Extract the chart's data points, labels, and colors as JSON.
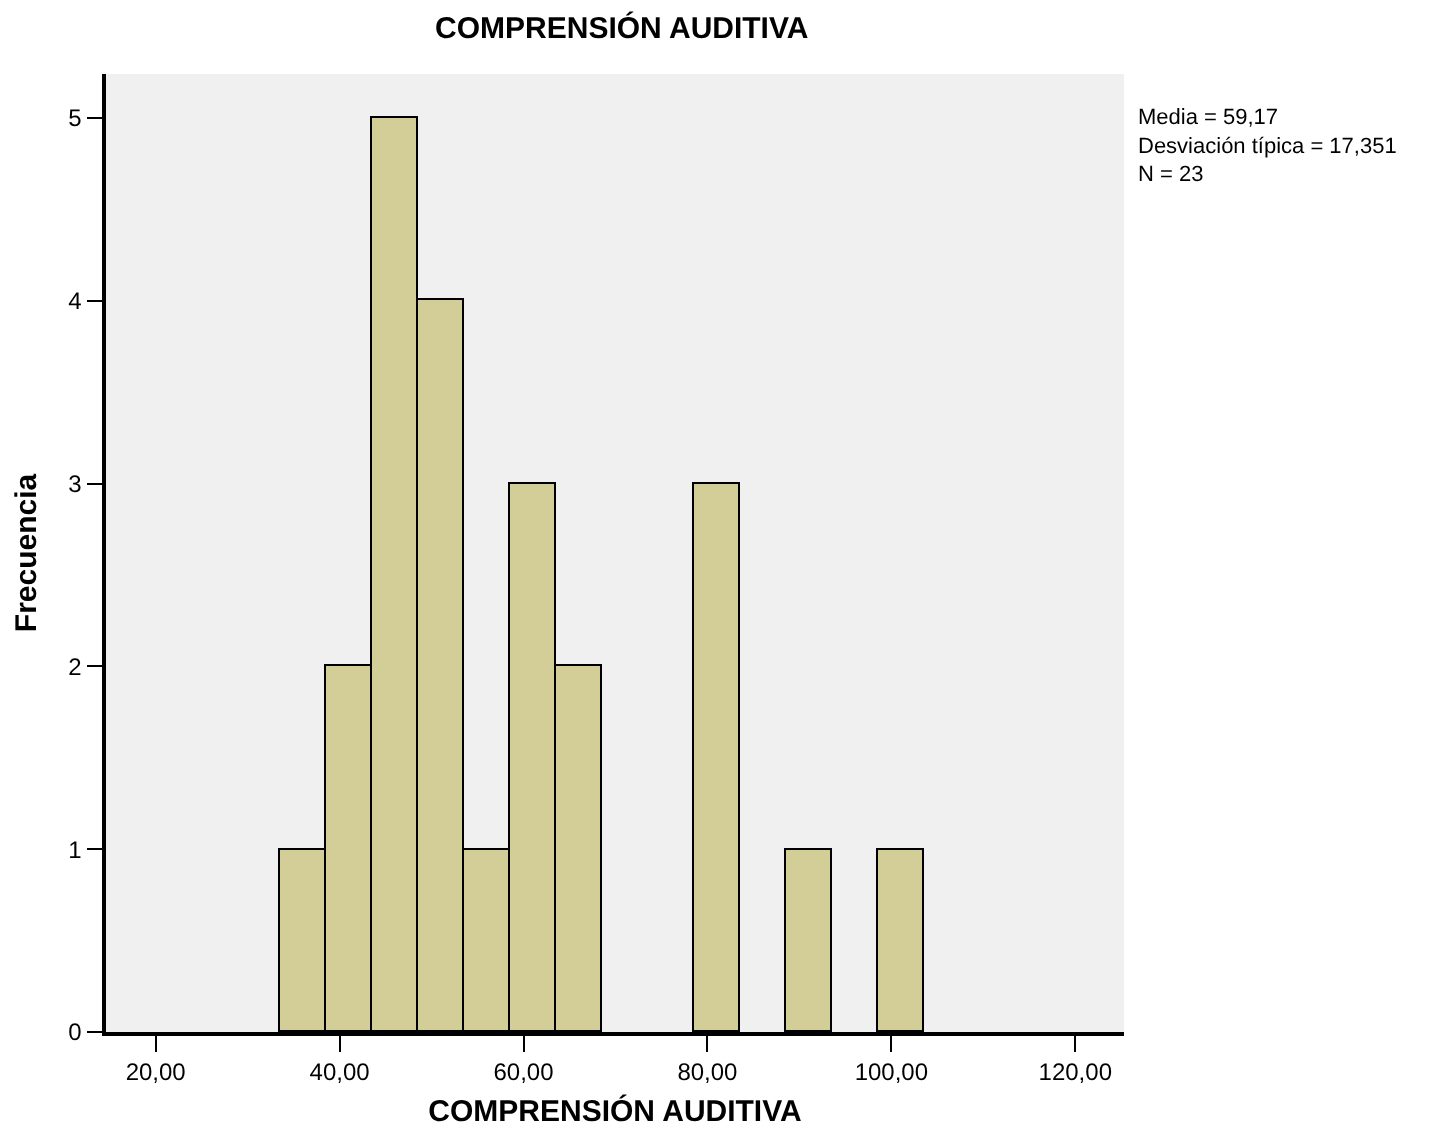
{
  "chart_data": {
    "type": "histogram",
    "title": "COMPRENSIÓN AUDITIVA",
    "xlabel": "COMPRENSIÓN AUDITIVA",
    "ylabel": "Frecuencia",
    "bins": [
      33.5,
      38.5,
      43.5,
      48.5,
      53.5,
      58.5,
      63.5,
      68.5,
      73.5,
      78.5,
      83.5,
      88.5,
      93.5,
      98.5,
      103.5
    ],
    "values": [
      1,
      2,
      5,
      4,
      1,
      3,
      2,
      0,
      0,
      3,
      0,
      1,
      0,
      1
    ],
    "color": "#d3ce97",
    "xlim": [
      14.6,
      125.3
    ],
    "xticks": [
      {
        "value": 20,
        "label": "20,00"
      },
      {
        "value": 40,
        "label": "40,00"
      },
      {
        "value": 60,
        "label": "60,00"
      },
      {
        "value": 80,
        "label": "80,00"
      },
      {
        "value": 100,
        "label": "100,00"
      },
      {
        "value": 120,
        "label": "120,00"
      }
    ],
    "ylim": [
      0,
      5.24
    ],
    "yticks": [
      0,
      1,
      2,
      3,
      4,
      5
    ],
    "annotations": [
      "Media = 59,17\nDesviación típica = 17,351\nN = 23"
    ]
  }
}
